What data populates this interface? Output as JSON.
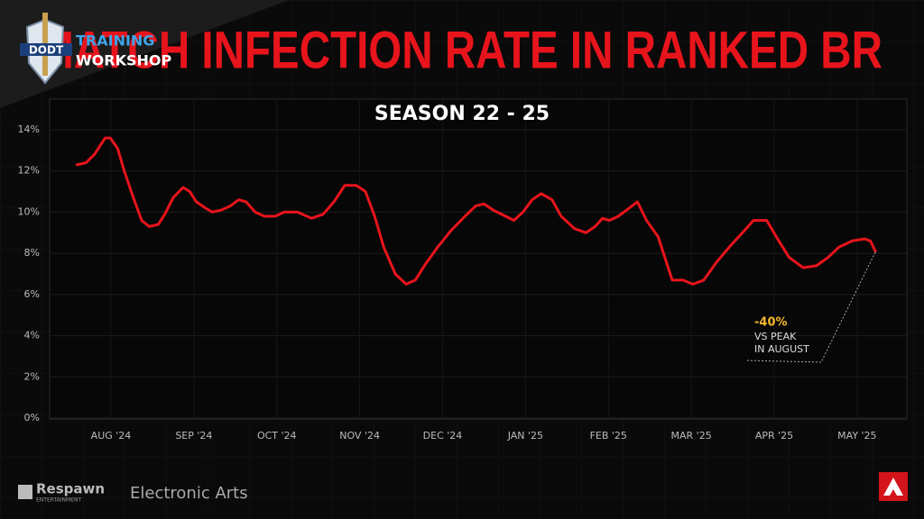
{
  "chart_data": {
    "type": "line",
    "title": "MATCH INFECTION RATE IN RANKED BR",
    "subtitle": "SEASON 22 - 25",
    "annotation": {
      "value_label": "-40%",
      "lines": [
        "VS PEAK",
        "IN AUGUST"
      ]
    },
    "xlim": [
      -0.74,
      9.6
    ],
    "xticks": [
      {
        "value": 0,
        "label": "AUG '24"
      },
      {
        "value": 1,
        "label": "SEP '24"
      },
      {
        "value": 2,
        "label": "OCT '24"
      },
      {
        "value": 3,
        "label": "NOV '24"
      },
      {
        "value": 4,
        "label": "DEC '24"
      },
      {
        "value": 5,
        "label": "JAN '25"
      },
      {
        "value": 6,
        "label": "FEB '25"
      },
      {
        "value": 7,
        "label": "MAR '25"
      },
      {
        "value": 8,
        "label": "APR '25"
      },
      {
        "value": 9,
        "label": "MAY '25"
      }
    ],
    "ylim": [
      0,
      14
    ],
    "yticks": [
      {
        "value": 0,
        "label": "0%"
      },
      {
        "value": 2,
        "label": "2%"
      },
      {
        "value": 4,
        "label": "4%"
      },
      {
        "value": 6,
        "label": "6%"
      },
      {
        "value": 8,
        "label": "8%"
      },
      {
        "value": 10,
        "label": "10%"
      },
      {
        "value": 12,
        "label": "12%"
      },
      {
        "value": 14,
        "label": "14%"
      }
    ],
    "grid": true,
    "x": [
      -0.41,
      -0.3,
      -0.2,
      -0.07,
      -0.01,
      0.08,
      0.16,
      0.27,
      0.37,
      0.46,
      0.57,
      0.65,
      0.75,
      0.87,
      0.95,
      1.03,
      1.14,
      1.22,
      1.33,
      1.44,
      1.54,
      1.63,
      1.74,
      1.85,
      1.98,
      2.09,
      2.25,
      2.42,
      2.56,
      2.69,
      2.82,
      2.96,
      3.07,
      3.18,
      3.29,
      3.43,
      3.56,
      3.67,
      3.78,
      3.94,
      4.1,
      4.27,
      4.4,
      4.5,
      4.61,
      4.76,
      4.86,
      4.97,
      5.08,
      5.19,
      5.32,
      5.43,
      5.59,
      5.73,
      5.84,
      5.93,
      6.01,
      6.12,
      6.22,
      6.35,
      6.46,
      6.6,
      6.77,
      6.9,
      7.02,
      7.15,
      7.31,
      7.48,
      7.64,
      7.75,
      7.91,
      8.04,
      8.18,
      8.35,
      8.51,
      8.65,
      8.78,
      8.94,
      9.09,
      9.16,
      9.22
    ],
    "series": [
      {
        "color": "#e8141c",
        "values": [
          12.3,
          12.4,
          12.8,
          13.6,
          13.6,
          13.1,
          12.0,
          10.7,
          9.6,
          9.3,
          9.4,
          9.9,
          10.7,
          11.2,
          11.0,
          10.5,
          10.2,
          10.0,
          10.1,
          10.3,
          10.6,
          10.5,
          10.0,
          9.8,
          9.8,
          10.0,
          10.0,
          9.7,
          9.9,
          10.5,
          11.3,
          11.3,
          11.0,
          9.8,
          8.3,
          7.0,
          6.5,
          6.7,
          7.4,
          8.3,
          9.1,
          9.8,
          10.3,
          10.4,
          10.1,
          9.8,
          9.6,
          10.0,
          10.6,
          10.9,
          10.6,
          9.8,
          9.2,
          9.0,
          9.3,
          9.7,
          9.6,
          9.8,
          10.1,
          10.5,
          9.6,
          8.8,
          6.7,
          6.7,
          6.5,
          6.7,
          7.6,
          8.4,
          9.1,
          9.6,
          9.6,
          8.7,
          7.8,
          7.3,
          7.4,
          7.8,
          8.3,
          8.6,
          8.7,
          8.6,
          8.1
        ]
      }
    ]
  },
  "logo": {
    "mark": "DODT",
    "line1": "TRAINING",
    "line2": "WORKSHOP"
  },
  "footer": {
    "brand1": "Respawn",
    "brand1_sub": "ENTERTAINMENT",
    "brand2": "Electronic Arts"
  }
}
